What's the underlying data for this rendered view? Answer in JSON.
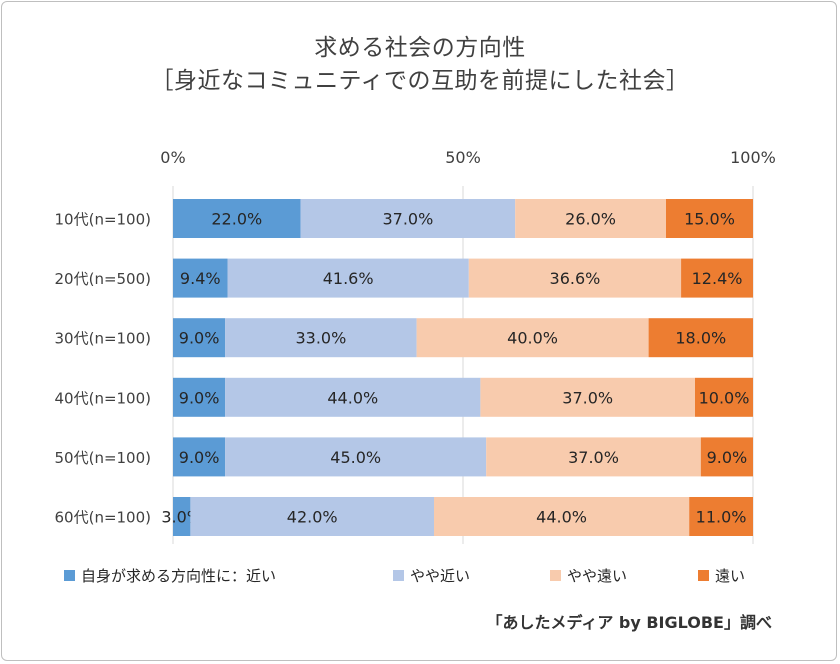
{
  "chart_data": {
    "type": "bar",
    "orientation": "horizontal",
    "stacked": true,
    "percent": true,
    "title": "求める社会の方向性",
    "subtitle": "［身近なコミュニティでの互助を前提にした社会］",
    "xlim": [
      0,
      100
    ],
    "x_ticks": [
      "0%",
      "50%",
      "100%"
    ],
    "x_tick_values": [
      0,
      50,
      100
    ],
    "categories": [
      "10代(n=100)",
      "20代(n=500)",
      "30代(n=100)",
      "40代(n=100)",
      "50代(n=100)",
      "60代(n=100)"
    ],
    "series": [
      {
        "name": "自身が求める方向性に：近い",
        "color": "#5b9bd5",
        "values": [
          22.0,
          9.4,
          9.0,
          9.0,
          9.0,
          3.0
        ],
        "labels": [
          "22.0%",
          "9.4%",
          "9.0%",
          "9.0%",
          "9.0%",
          "3.0%"
        ]
      },
      {
        "name": "やや近い",
        "color": "#b4c7e7",
        "values": [
          37.0,
          41.6,
          33.0,
          44.0,
          45.0,
          42.0
        ],
        "labels": [
          "37.0%",
          "41.6%",
          "33.0%",
          "44.0%",
          "45.0%",
          "42.0%"
        ]
      },
      {
        "name": "やや遠い",
        "color": "#f8cbad",
        "values": [
          26.0,
          36.6,
          40.0,
          37.0,
          37.0,
          44.0
        ],
        "labels": [
          "26.0%",
          "36.6%",
          "40.0%",
          "37.0%",
          "37.0%",
          "44.0%"
        ]
      },
      {
        "name": "遠い",
        "color": "#ed7d31",
        "values": [
          15.0,
          12.4,
          18.0,
          10.0,
          9.0,
          11.0
        ],
        "labels": [
          "15.0%",
          "12.4%",
          "18.0%",
          "10.0%",
          "9.0%",
          "11.0%"
        ]
      }
    ],
    "grid": true,
    "legend_position": "bottom"
  },
  "source": "「あしたメディア by BIGLOBE」調べ",
  "colors": {
    "gridline": "#d9d9d9",
    "text": "#404040"
  }
}
